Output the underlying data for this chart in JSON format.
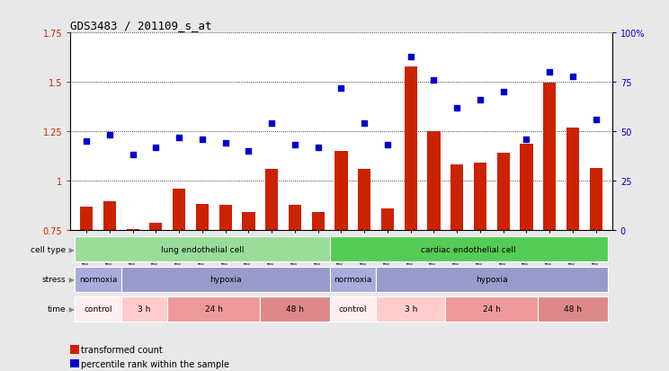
{
  "title": "GDS3483 / 201109_s_at",
  "samples": [
    "GSM286407",
    "GSM286410",
    "GSM286414",
    "GSM286411",
    "GSM286415",
    "GSM286408",
    "GSM286412",
    "GSM286416",
    "GSM286409",
    "GSM286413",
    "GSM286417",
    "GSM286418",
    "GSM286422",
    "GSM286426",
    "GSM286419",
    "GSM286423",
    "GSM286427",
    "GSM286420",
    "GSM286424",
    "GSM286428",
    "GSM286421",
    "GSM286425",
    "GSM286429"
  ],
  "bar_values": [
    0.865,
    0.895,
    0.755,
    0.785,
    0.96,
    0.88,
    0.875,
    0.84,
    1.06,
    0.875,
    0.84,
    1.15,
    1.06,
    0.86,
    1.58,
    1.25,
    1.08,
    1.09,
    1.14,
    1.185,
    1.495,
    1.27,
    1.065
  ],
  "dot_values": [
    45,
    48,
    38,
    42,
    47,
    46,
    44,
    40,
    54,
    43,
    42,
    72,
    54,
    43,
    88,
    76,
    62,
    66,
    70,
    46,
    80,
    78,
    56
  ],
  "ylim_left": [
    0.75,
    1.75
  ],
  "ylim_right": [
    0,
    100
  ],
  "yticks_left": [
    0.75,
    1.0,
    1.25,
    1.5,
    1.75
  ],
  "yticks_right": [
    0,
    25,
    50,
    75,
    100
  ],
  "ytick_labels_left": [
    "0.75",
    "1",
    "1.25",
    "1.5",
    "1.75"
  ],
  "ytick_labels_right": [
    "0",
    "25",
    "50",
    "75",
    "100%"
  ],
  "bar_color": "#cc2200",
  "dot_color": "#0000cc",
  "bg_color": "#e8e8e8",
  "plot_bg": "#ffffff",
  "cell_type_segments": [
    {
      "text": "lung endothelial cell",
      "start": 0,
      "end": 10,
      "color": "#99dd99"
    },
    {
      "text": "cardiac endothelial cell",
      "start": 11,
      "end": 22,
      "color": "#55cc55"
    }
  ],
  "stress_segments": [
    {
      "text": "normoxia",
      "start": 0,
      "end": 1,
      "color": "#aaaadd"
    },
    {
      "text": "hypoxia",
      "start": 2,
      "end": 10,
      "color": "#9999cc"
    },
    {
      "text": "normoxia",
      "start": 11,
      "end": 12,
      "color": "#aaaadd"
    },
    {
      "text": "hypoxia",
      "start": 13,
      "end": 22,
      "color": "#9999cc"
    }
  ],
  "time_segments": [
    {
      "text": "control",
      "start": 0,
      "end": 1,
      "color": "#ffeeee"
    },
    {
      "text": "3 h",
      "start": 2,
      "end": 3,
      "color": "#ffcccc"
    },
    {
      "text": "24 h",
      "start": 4,
      "end": 7,
      "color": "#ee9999"
    },
    {
      "text": "48 h",
      "start": 8,
      "end": 10,
      "color": "#dd8888"
    },
    {
      "text": "control",
      "start": 11,
      "end": 12,
      "color": "#ffeeee"
    },
    {
      "text": "3 h",
      "start": 13,
      "end": 15,
      "color": "#ffcccc"
    },
    {
      "text": "24 h",
      "start": 16,
      "end": 19,
      "color": "#ee9999"
    },
    {
      "text": "48 h",
      "start": 20,
      "end": 22,
      "color": "#dd8888"
    }
  ],
  "row_labels": [
    "cell type",
    "stress",
    "time"
  ],
  "legend_items": [
    {
      "label": "transformed count",
      "color": "#cc2200"
    },
    {
      "label": "percentile rank within the sample",
      "color": "#0000cc"
    }
  ],
  "grid_color": "black",
  "grid_lw": 0.6
}
